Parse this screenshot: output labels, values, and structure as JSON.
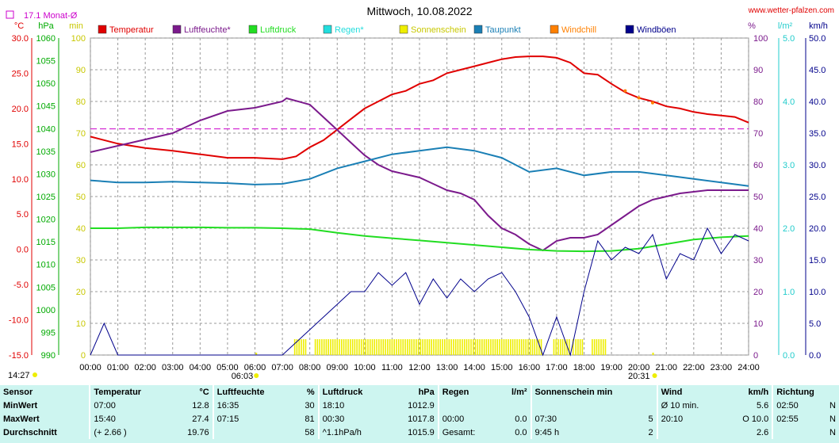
{
  "header": {
    "title": "Mittwoch, 10.08.2022",
    "site": "www.wetter-pfalzen.com",
    "month_avg_label": "17.1 Monat-Ø"
  },
  "units": {
    "temp": "°C",
    "press": "hPa",
    "min": "min",
    "pct": "%",
    "rain": "l/m²",
    "wind": "km/h"
  },
  "legend": [
    {
      "label": "Temperatur",
      "color": "#e00000"
    },
    {
      "label": "Luftfeuchte*",
      "color": "#7b1a8c"
    },
    {
      "label": "Luftdruck",
      "color": "#22dd22"
    },
    {
      "label": "Regen*",
      "color": "#22dddd"
    },
    {
      "label": "Sonnenschein",
      "color": "#eeee00"
    },
    {
      "label": "Taupunkt",
      "color": "#1a7fb5"
    },
    {
      "label": "Windchill",
      "color": "#ff8000"
    },
    {
      "label": "Windböen",
      "color": "#00008b"
    }
  ],
  "chart_data": {
    "type": "line",
    "title": "Mittwoch, 10.08.2022",
    "x_ticks": [
      "00:00",
      "01:00",
      "02:00",
      "03:00",
      "04:00",
      "05:00",
      "06:00",
      "07:00",
      "08:00",
      "09:00",
      "10:00",
      "11:00",
      "12:00",
      "13:00",
      "14:00",
      "15:00",
      "16:00",
      "17:00",
      "18:00",
      "19:00",
      "20:00",
      "21:00",
      "22:00",
      "23:00",
      "24:00"
    ],
    "axes": {
      "temp": {
        "unit": "°C",
        "ylim": [
          -15,
          30
        ],
        "ticks": [
          "30.0",
          "25.0",
          "20.0",
          "15.0",
          "10.0",
          "5.0",
          "0.0",
          "-5.0",
          "-10.0",
          "-15.0"
        ]
      },
      "pressure": {
        "unit": "hPa",
        "ylim": [
          990,
          1060
        ],
        "ticks": [
          "1060",
          "1055",
          "1050",
          "1045",
          "1040",
          "1035",
          "1030",
          "1025",
          "1020",
          "1015",
          "1010",
          "1005",
          "1000",
          "995",
          "990"
        ]
      },
      "sun_min": {
        "unit": "min",
        "ylim": [
          0,
          100
        ],
        "ticks": [
          "100",
          "90",
          "80",
          "70",
          "60",
          "50",
          "40",
          "30",
          "20",
          "10",
          "0"
        ]
      },
      "humidity": {
        "unit": "%",
        "ylim": [
          0,
          100
        ],
        "ticks": [
          "100",
          "90",
          "80",
          "70",
          "60",
          "50",
          "40",
          "30",
          "20",
          "10",
          "0"
        ]
      },
      "rain": {
        "unit": "l/m²",
        "ylim": [
          0,
          5
        ],
        "ticks": [
          "5.0",
          "4.0",
          "3.0",
          "2.0",
          "1.0",
          "0.0"
        ]
      },
      "wind": {
        "unit": "km/h",
        "ylim": [
          0,
          50
        ],
        "ticks": [
          "50.0",
          "45.0",
          "40.0",
          "35.0",
          "30.0",
          "25.0",
          "20.0",
          "15.0",
          "10.0",
          "5.0",
          "0.0"
        ]
      }
    },
    "month_avg_temp": 17.1,
    "sunrise": "06:03",
    "sunset": "20:31",
    "daylength_label": "14:27",
    "series": [
      {
        "name": "Temperatur",
        "axis": "temp",
        "color": "#e00000",
        "x": [
          0,
          1,
          2,
          3,
          4,
          5,
          6,
          7,
          7.5,
          8,
          8.5,
          9,
          9.5,
          10,
          10.5,
          11,
          11.5,
          12,
          12.5,
          13,
          13.5,
          14,
          14.5,
          15,
          15.5,
          16,
          16.5,
          17,
          17.5,
          18,
          18.5,
          19,
          19.5,
          20,
          20.5,
          21,
          21.5,
          22,
          22.5,
          23,
          23.5,
          24
        ],
        "y": [
          16.0,
          15.0,
          14.4,
          14.0,
          13.5,
          13.0,
          13.0,
          12.8,
          13.2,
          14.5,
          15.5,
          17.0,
          18.5,
          20.0,
          21.0,
          22.0,
          22.5,
          23.5,
          24.0,
          25.0,
          25.5,
          26.0,
          26.5,
          27.0,
          27.3,
          27.4,
          27.4,
          27.2,
          26.5,
          25.0,
          24.8,
          23.5,
          22.3,
          21.5,
          21.0,
          20.3,
          20.0,
          19.5,
          19.2,
          19.0,
          18.8,
          18.0
        ]
      },
      {
        "name": "Luftfeuchte*",
        "axis": "humidity",
        "color": "#7b1a8c",
        "x": [
          0,
          1,
          2,
          3,
          4,
          5,
          6,
          7,
          7.15,
          8,
          8.5,
          9,
          9.5,
          10,
          10.5,
          11,
          11.5,
          12,
          12.5,
          13,
          13.5,
          14,
          14.5,
          15,
          15.5,
          16,
          16.5,
          17,
          17.5,
          18,
          18.5,
          19,
          19.5,
          20,
          20.5,
          21,
          21.5,
          22,
          22.5,
          23,
          23.5,
          24
        ],
        "y": [
          64,
          66,
          68,
          70,
          74,
          77,
          78,
          80,
          81,
          79,
          75,
          71,
          67,
          63,
          60,
          58,
          57,
          56,
          54,
          52,
          51,
          49,
          44,
          40,
          38,
          35,
          33,
          36,
          37,
          37,
          38,
          41,
          44,
          47,
          49,
          50,
          51,
          51.5,
          52,
          52,
          52,
          52
        ]
      },
      {
        "name": "Luftdruck",
        "axis": "pressure",
        "color": "#22dd22",
        "x": [
          0,
          1,
          2,
          3,
          4,
          5,
          6,
          7,
          8,
          9,
          10,
          11,
          12,
          13,
          14,
          15,
          16,
          17,
          18,
          19,
          20,
          21,
          22,
          23,
          24
        ],
        "y": [
          1018.0,
          1018.0,
          1018.2,
          1018.2,
          1018.2,
          1018.1,
          1018.1,
          1018.0,
          1017.8,
          1017.0,
          1016.3,
          1015.8,
          1015.3,
          1014.8,
          1014.3,
          1013.8,
          1013.3,
          1013.0,
          1012.9,
          1013.0,
          1013.5,
          1014.5,
          1015.5,
          1016.0,
          1016.3
        ]
      },
      {
        "name": "Taupunkt",
        "axis": "temp",
        "color": "#1a7fb5",
        "x": [
          0,
          1,
          2,
          3,
          4,
          5,
          6,
          7,
          8,
          9,
          10,
          11,
          12,
          13,
          14,
          15,
          16,
          17,
          18,
          19,
          20,
          21,
          22,
          23,
          24
        ],
        "y": [
          9.8,
          9.5,
          9.5,
          9.6,
          9.5,
          9.4,
          9.2,
          9.3,
          10.0,
          11.5,
          12.5,
          13.5,
          14.0,
          14.5,
          14.0,
          13.0,
          11.0,
          11.5,
          10.5,
          11.0,
          11.0,
          10.5,
          10.0,
          9.5,
          9.0
        ]
      },
      {
        "name": "Windböen",
        "axis": "wind",
        "color": "#00008b",
        "x": [
          0,
          0.5,
          1,
          2,
          3,
          4,
          5,
          6,
          7,
          8,
          9,
          9.5,
          10,
          10.5,
          11,
          11.5,
          12,
          12.5,
          13,
          13.5,
          14,
          14.5,
          15,
          15.5,
          16,
          16.5,
          17,
          17.5,
          18,
          18.5,
          19,
          19.5,
          20,
          20.5,
          21,
          21.5,
          22,
          22.5,
          23,
          23.5,
          24
        ],
        "y": [
          0,
          5,
          0,
          0,
          0,
          0,
          0,
          0,
          0,
          4,
          8,
          10,
          10,
          13,
          11,
          13,
          8,
          12,
          9,
          12,
          10,
          12,
          13,
          10,
          6,
          0,
          6,
          0,
          10,
          18,
          15,
          17,
          16,
          19,
          12,
          16,
          15,
          20,
          16,
          19,
          18
        ]
      }
    ],
    "sunshine_min_blocks": [
      {
        "from": 7.45,
        "to": 7.85
      },
      {
        "from": 8.2,
        "to": 16.5
      },
      {
        "from": 16.9,
        "to": 17.5
      },
      {
        "from": 17.6,
        "to": 17.65
      },
      {
        "from": 17.7,
        "to": 18.0
      },
      {
        "from": 18.3,
        "to": 18.8
      }
    ],
    "windchill_marks": [
      {
        "x": 19.5,
        "y": 22.5
      },
      {
        "x": 20.0,
        "y": 21.5
      },
      {
        "x": 20.5,
        "y": 20.8
      }
    ]
  },
  "stats": {
    "columns": [
      {
        "title": "Sensor"
      },
      {
        "title": "Temperatur",
        "unit": "°C"
      },
      {
        "title": "Luftfeuchte",
        "unit": "%"
      },
      {
        "title": "Luftdruck",
        "unit": "hPa"
      },
      {
        "title": "Regen",
        "unit": "l/m²"
      },
      {
        "title": "Sonnenschein min"
      },
      {
        "title": "Wind",
        "unit": "km/h"
      },
      {
        "title": "Richtung"
      }
    ],
    "rows": [
      {
        "label": "MinWert",
        "temp_time": "07:00",
        "temp_val": "12.8",
        "hum_time": "16:35",
        "hum_val": "30",
        "press_time": "18:10",
        "press_val": "1012.9",
        "rain_time": "",
        "rain_val": "",
        "sun_time": "",
        "sun_val": "",
        "wind_time": "Ø 10 min.",
        "wind_val": "5.6",
        "dir_time": "02:50",
        "dir_val": "N"
      },
      {
        "label": "MaxWert",
        "temp_time": "15:40",
        "temp_val": "27.4",
        "hum_time": "07:15",
        "hum_val": "81",
        "press_time": "00:30",
        "press_val": "1017.8",
        "rain_time": "00:00",
        "rain_val": "0.0",
        "sun_time": "07:30",
        "sun_val": "5",
        "wind_time": "20:10",
        "wind_val": "O 10.0",
        "dir_time": "02:55",
        "dir_val": "N"
      },
      {
        "label": "Durchschnitt",
        "temp_time": "(+ 2.66 )",
        "temp_val": "19.76",
        "hum_time": "",
        "hum_val": "58",
        "press_time": "^1.1hPa/h",
        "press_val": "1015.9",
        "rain_time": "Gesamt:",
        "rain_val": "0.0",
        "sun_time": "9:45 h",
        "sun_val": "2",
        "wind_time": "",
        "wind_val": "2.6",
        "dir_time": "",
        "dir_val": "N"
      }
    ]
  }
}
